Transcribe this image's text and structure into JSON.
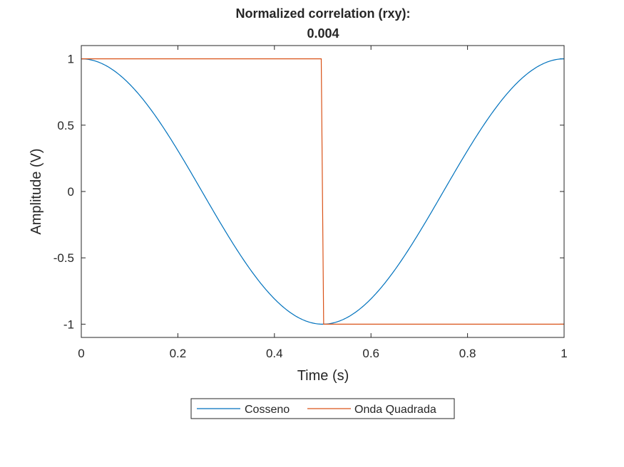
{
  "chart_data": {
    "type": "line",
    "title_lines": [
      "Normalized correlation (rxy):",
      "0.004"
    ],
    "xlabel": "Time (s)",
    "ylabel": "Amplitude (V)",
    "xlim": [
      0,
      1
    ],
    "ylim": [
      -1.1,
      1.1
    ],
    "x_ticks": [
      0,
      0.2,
      0.4,
      0.6,
      0.8,
      1
    ],
    "x_tick_labels": [
      "0",
      "0.2",
      "0.4",
      "0.6",
      "0.8",
      "1"
    ],
    "y_ticks": [
      1,
      0.5,
      0,
      -0.5,
      -1
    ],
    "y_tick_labels": [
      "1",
      "0.5",
      "0",
      "-0.5",
      "-1"
    ],
    "grid": false,
    "legend_placement": "bottom-outside",
    "series": [
      {
        "name": "Cosseno",
        "color": "#0072BD",
        "function": "cos(2*pi*t)",
        "x": [
          0,
          0.05,
          0.1,
          0.15,
          0.2,
          0.25,
          0.3,
          0.35,
          0.4,
          0.45,
          0.5,
          0.55,
          0.6,
          0.65,
          0.7,
          0.75,
          0.8,
          0.85,
          0.9,
          0.95,
          1
        ],
        "y": [
          1,
          0.951,
          0.809,
          0.588,
          0.309,
          0,
          -0.309,
          -0.588,
          -0.809,
          -0.951,
          -1,
          -0.951,
          -0.809,
          -0.588,
          -0.309,
          0,
          0.309,
          0.588,
          0.809,
          0.951,
          1
        ]
      },
      {
        "name": "Onda Quadrada",
        "color": "#D95319",
        "x": [
          0,
          0.497,
          0.502,
          1
        ],
        "y": [
          1,
          1,
          -1,
          -1
        ]
      }
    ]
  }
}
